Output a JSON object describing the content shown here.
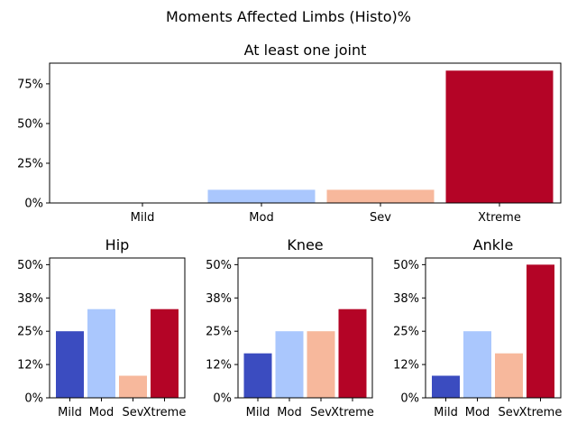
{
  "suptitle": "Moments Affected Limbs (Histo)%",
  "colors": {
    "Mild": "#3b4cc0",
    "Mod": "#aac7fd",
    "Sev": "#f7b89c",
    "Xtreme": "#b40426"
  },
  "chart_data": [
    {
      "type": "bar",
      "title": "At least one joint",
      "categories": [
        "Mild",
        "Mod",
        "Sev",
        "Xtreme"
      ],
      "values": [
        0,
        8.3,
        8.3,
        83.3
      ],
      "ylim": [
        0,
        88
      ],
      "yticks": [
        0,
        25,
        50,
        75
      ],
      "ytick_labels": [
        "0%",
        "25%",
        "50%",
        "75%"
      ]
    },
    {
      "type": "bar",
      "title": "Hip",
      "categories": [
        "Mild",
        "Mod",
        "Sev",
        "Xtreme"
      ],
      "values": [
        25,
        33.3,
        8.3,
        33.3
      ],
      "ylim": [
        0,
        52.5
      ],
      "yticks": [
        0,
        12.5,
        25,
        37.5,
        50
      ],
      "ytick_labels": [
        "0%",
        "12%",
        "25%",
        "38%",
        "50%"
      ]
    },
    {
      "type": "bar",
      "title": "Knee",
      "categories": [
        "Mild",
        "Mod",
        "Sev",
        "Xtreme"
      ],
      "values": [
        16.7,
        25,
        25,
        33.3
      ],
      "ylim": [
        0,
        52.5
      ],
      "yticks": [
        0,
        12.5,
        25,
        37.5,
        50
      ],
      "ytick_labels": [
        "0%",
        "12%",
        "25%",
        "38%",
        "50%"
      ]
    },
    {
      "type": "bar",
      "title": "Ankle",
      "categories": [
        "Mild",
        "Mod",
        "Sev",
        "Xtreme"
      ],
      "values": [
        8.3,
        25,
        16.7,
        50
      ],
      "ylim": [
        0,
        52.5
      ],
      "yticks": [
        0,
        12.5,
        25,
        37.5,
        50
      ],
      "ytick_labels": [
        "0%",
        "12%",
        "25%",
        "38%",
        "50%"
      ]
    }
  ]
}
